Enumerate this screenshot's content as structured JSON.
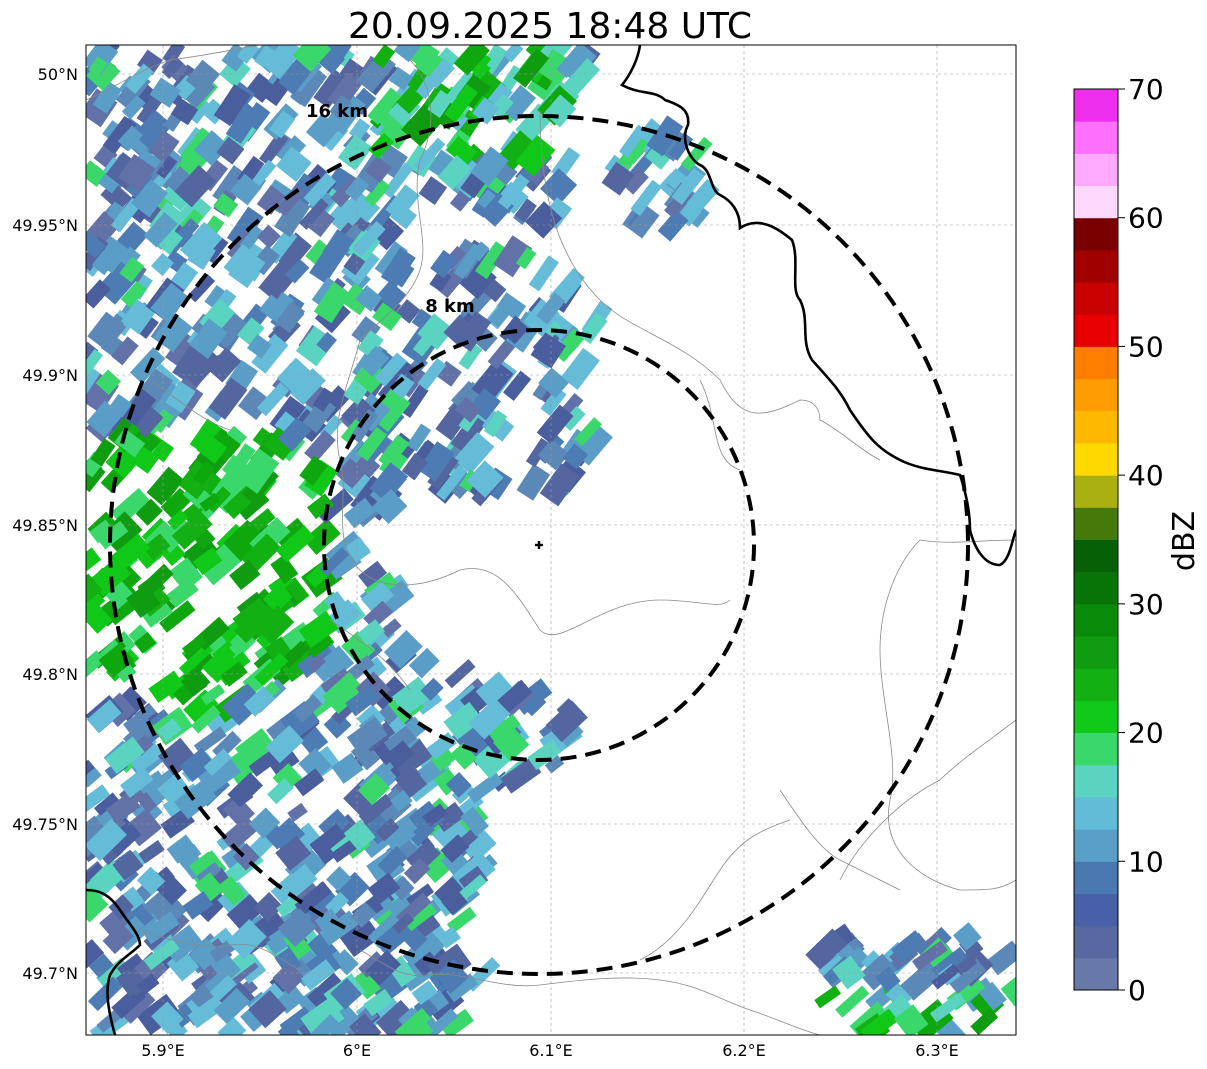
{
  "title": "20.09.2025 18:48 UTC",
  "map": {
    "x_ticks": [
      "5.9°E",
      "6°E",
      "6.1°E",
      "6.2°E",
      "6.3°E"
    ],
    "y_ticks": [
      "50°N",
      "49.95°N",
      "49.9°N",
      "49.85°N",
      "49.8°N",
      "49.75°N",
      "49.7°N"
    ],
    "rings": [
      {
        "label": "16 km",
        "radius_km": 16
      },
      {
        "label": "8 km",
        "radius_km": 8
      }
    ],
    "center": {
      "lon": 6.095,
      "lat": 49.843
    },
    "gridlines": true,
    "radar_echo_color_range": [
      "#5a6fa8",
      "#44c08a",
      "#10c010"
    ]
  },
  "colorbar": {
    "label": "dBZ",
    "ticks": [
      "0",
      "10",
      "20",
      "30",
      "40",
      "50",
      "60",
      "70"
    ],
    "colors": [
      "#6878a8",
      "#5868a0",
      "#4860a8",
      "#4a78b0",
      "#58a0c8",
      "#62bcd8",
      "#5ad4c0",
      "#3ad86a",
      "#10c818",
      "#12b012",
      "#109c10",
      "#0a8a0a",
      "#087408",
      "#066006",
      "#457a0a",
      "#aab010",
      "#ffd800",
      "#ffb800",
      "#ff9c00",
      "#ff7e00",
      "#e80000",
      "#c80000",
      "#a00000",
      "#780000",
      "#ffd8ff",
      "#ffaaff",
      "#ff70ff",
      "#ee30ee"
    ]
  }
}
